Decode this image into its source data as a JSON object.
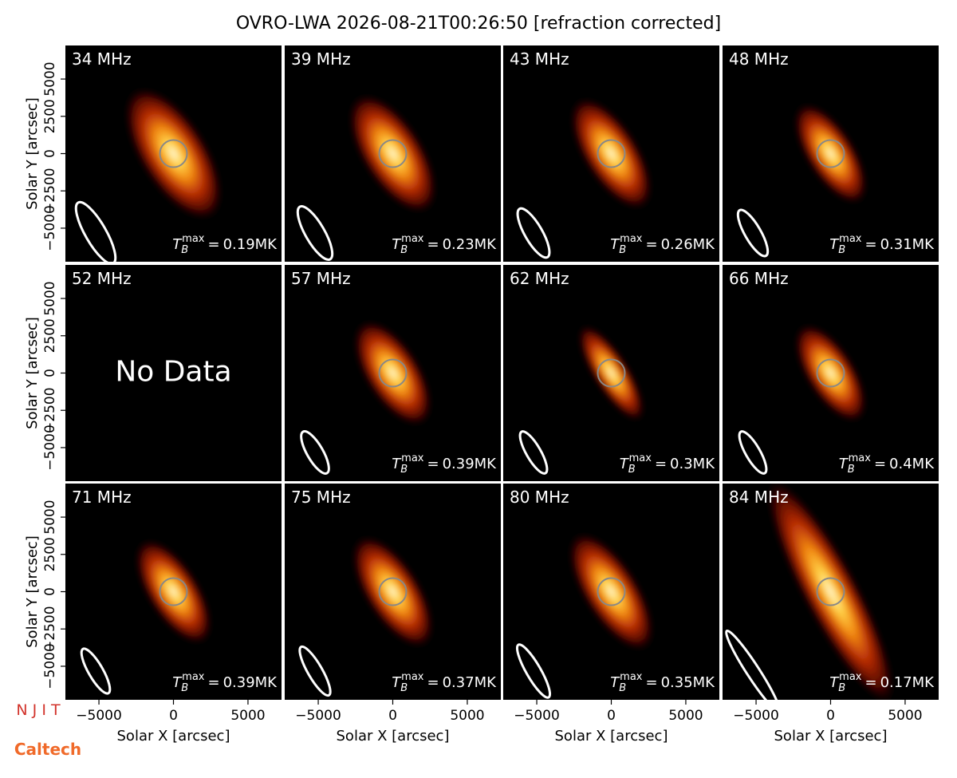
{
  "chart_data": {
    "type": "image-grid",
    "title": "OVRO-LWA 2026-08-21T00:26:50 [refraction corrected]",
    "xlabel": "Solar X [arcsec]",
    "ylabel": "Solar Y [arcsec]",
    "xlim": [
      -7250,
      7250
    ],
    "ylim": [
      -7250,
      7250
    ],
    "xticks": [
      {
        "value": -5000,
        "label": "−5000"
      },
      0,
      5000
    ],
    "yticks": [
      {
        "value": -5000,
        "label": "−5000"
      },
      {
        "value": -2500,
        "label": "−2500"
      },
      0,
      2500,
      5000
    ],
    "categories": [
      "34 MHz",
      "39 MHz",
      "43 MHz",
      "48 MHz",
      "52 MHz",
      "57 MHz",
      "62 MHz",
      "66 MHz",
      "71 MHz",
      "75 MHz",
      "80 MHz",
      "84 MHz"
    ],
    "values": [
      0.19,
      0.23,
      0.26,
      0.31,
      null,
      0.39,
      0.3,
      0.4,
      0.39,
      0.37,
      0.35,
      0.17
    ],
    "value_labels": [
      "0.19MK",
      "0.23MK",
      "0.26MK",
      "0.31MK",
      null,
      "0.39MK",
      "0.3MK",
      "0.4MK",
      "0.39MK",
      "0.37MK",
      "0.35MK",
      "0.17MK"
    ],
    "tb_symbol": "T",
    "tb_sub": "B",
    "tb_sup": "max",
    "tb_eq": "=",
    "no_data": "No Data",
    "logos": {
      "njit": "N J I T",
      "caltech": "Caltech"
    }
  }
}
